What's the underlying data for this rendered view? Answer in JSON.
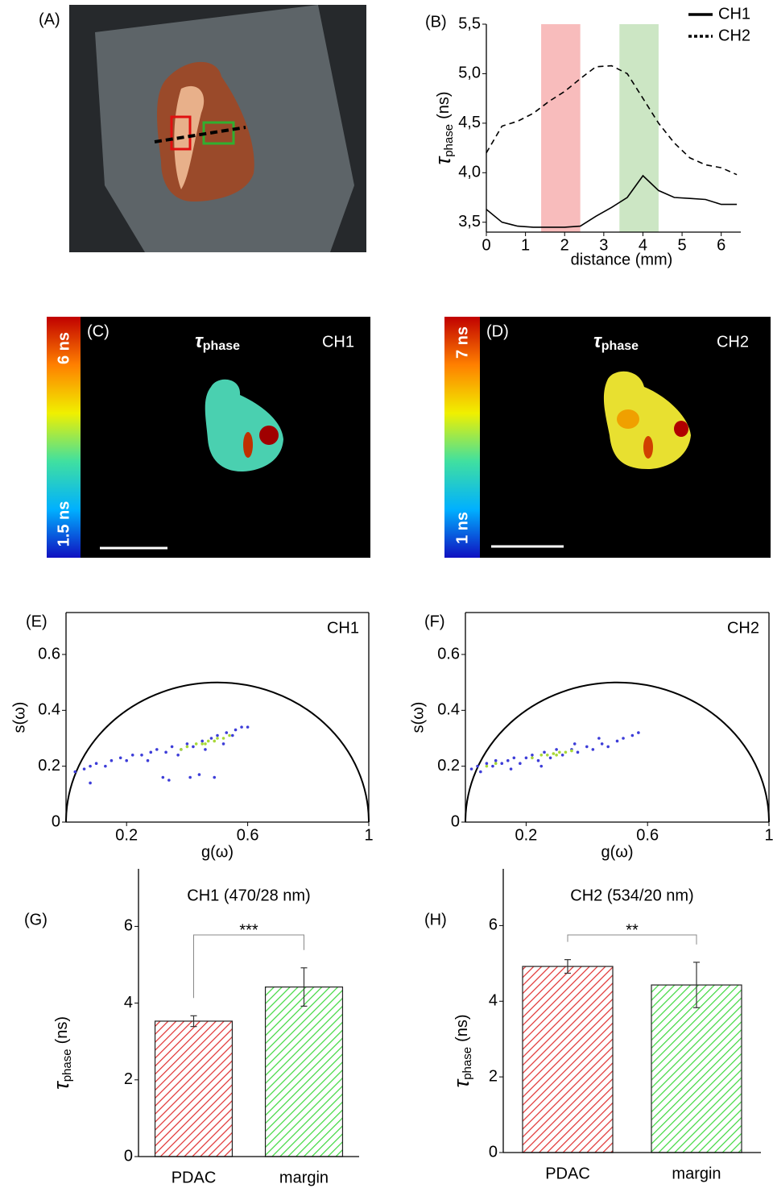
{
  "chart_data": [
    {
      "type": "line",
      "panel": "(B)",
      "ylabel": [
        "τ",
        "phase",
        "(ns)"
      ],
      "xlabel": "distance (mm)",
      "x": [
        0,
        0.4,
        0.8,
        1.2,
        1.6,
        2.0,
        2.4,
        2.8,
        3.2,
        3.6,
        4.0,
        4.4,
        4.8,
        5.2,
        5.6,
        6.0,
        6.4
      ],
      "series": [
        {
          "name": "CH1",
          "color": "#000000",
          "dash": "solid",
          "values": [
            3.63,
            3.5,
            3.46,
            3.45,
            3.45,
            3.45,
            3.46,
            3.56,
            3.65,
            3.75,
            3.97,
            3.82,
            3.75,
            3.74,
            3.73,
            3.68,
            3.68
          ]
        },
        {
          "name": "CH2",
          "color": "#000000",
          "dash": "dashed",
          "values": [
            4.2,
            4.47,
            4.52,
            4.6,
            4.72,
            4.82,
            4.95,
            5.07,
            5.08,
            5.0,
            4.75,
            4.5,
            4.3,
            4.15,
            4.08,
            4.05,
            3.98
          ]
        }
      ],
      "bands": [
        {
          "from": 1.4,
          "to": 2.4,
          "color": "#f8bcbc"
        },
        {
          "from": 3.4,
          "to": 4.4,
          "color": "#cce6c4"
        }
      ],
      "xlim": [
        0,
        6.5
      ],
      "ylim": [
        3.4,
        5.5
      ],
      "xticks": [
        0,
        1,
        2,
        3,
        4,
        5,
        6
      ],
      "yticks": [
        {
          "value": 3.5,
          "label": "3,5"
        },
        {
          "value": 4.0,
          "label": "4,0"
        },
        {
          "value": 4.5,
          "label": "4,5"
        },
        {
          "value": 5.0,
          "label": "5,0"
        },
        {
          "value": 5.5,
          "label": "5,5"
        }
      ],
      "legend": "top-right"
    },
    {
      "type": "scatter",
      "panel": "(E)",
      "label": "CH1",
      "xlabel": "g(ω)",
      "ylabel": "s(ω)",
      "xlim": [
        0,
        1
      ],
      "ylim": [
        0,
        0.75
      ],
      "xticks": [
        0.2,
        0.6,
        1
      ],
      "yticks": [
        0,
        0.2,
        0.4,
        0.6
      ],
      "semicircle": true,
      "series": [
        {
          "color": "#3d3dd8",
          "x": [
            0.03,
            0.06,
            0.08,
            0.1,
            0.08,
            0.13,
            0.15,
            0.18,
            0.2,
            0.22,
            0.25,
            0.28,
            0.3,
            0.33,
            0.35,
            0.38,
            0.4,
            0.42,
            0.45,
            0.48,
            0.5,
            0.53,
            0.56,
            0.58,
            0.6,
            0.32,
            0.34,
            0.41,
            0.44,
            0.49,
            0.27,
            0.37,
            0.46,
            0.52,
            0.55
          ],
          "y": [
            0.18,
            0.19,
            0.2,
            0.21,
            0.14,
            0.2,
            0.22,
            0.23,
            0.22,
            0.24,
            0.24,
            0.25,
            0.26,
            0.25,
            0.27,
            0.26,
            0.28,
            0.27,
            0.29,
            0.3,
            0.31,
            0.32,
            0.33,
            0.34,
            0.34,
            0.16,
            0.15,
            0.16,
            0.17,
            0.16,
            0.22,
            0.24,
            0.26,
            0.28,
            0.31
          ]
        },
        {
          "color": "#a8d838",
          "x": [
            0.4,
            0.43,
            0.45,
            0.47,
            0.49,
            0.5,
            0.52,
            0.54,
            0.38,
            0.46
          ],
          "y": [
            0.27,
            0.28,
            0.28,
            0.29,
            0.29,
            0.3,
            0.3,
            0.31,
            0.26,
            0.28
          ]
        }
      ]
    },
    {
      "type": "scatter",
      "panel": "(F)",
      "label": "CH2",
      "xlabel": "g(ω)",
      "ylabel": "s(ω)",
      "xlim": [
        0,
        1
      ],
      "ylim": [
        0,
        0.75
      ],
      "xticks": [
        0.2,
        0.6,
        1
      ],
      "yticks": [
        0,
        0.2,
        0.4,
        0.6
      ],
      "semicircle": true,
      "series": [
        {
          "color": "#3d3dd8",
          "x": [
            0.02,
            0.04,
            0.05,
            0.07,
            0.09,
            0.1,
            0.12,
            0.14,
            0.16,
            0.18,
            0.2,
            0.22,
            0.24,
            0.26,
            0.28,
            0.3,
            0.32,
            0.35,
            0.37,
            0.4,
            0.42,
            0.45,
            0.47,
            0.5,
            0.52,
            0.55,
            0.57,
            0.44,
            0.36,
            0.25,
            0.15
          ],
          "y": [
            0.19,
            0.2,
            0.18,
            0.21,
            0.2,
            0.22,
            0.21,
            0.22,
            0.23,
            0.21,
            0.23,
            0.24,
            0.22,
            0.25,
            0.23,
            0.26,
            0.24,
            0.26,
            0.25,
            0.27,
            0.26,
            0.28,
            0.27,
            0.29,
            0.3,
            0.31,
            0.32,
            0.3,
            0.28,
            0.2,
            0.19
          ]
        },
        {
          "color": "#a8d838",
          "x": [
            0.22,
            0.25,
            0.27,
            0.29,
            0.31,
            0.33,
            0.35,
            0.3,
            0.07,
            0.1
          ],
          "y": [
            0.23,
            0.24,
            0.24,
            0.245,
            0.25,
            0.25,
            0.255,
            0.24,
            0.2,
            0.21
          ]
        }
      ]
    },
    {
      "type": "bar",
      "panel": "(G)",
      "title": "CH1 (470/28 nm)",
      "ylabel": [
        "τ",
        "phase",
        "(ns)"
      ],
      "categories": [
        "PDAC",
        "margin"
      ],
      "values": [
        3.53,
        4.42
      ],
      "errors": [
        0.14,
        0.5
      ],
      "colors": [
        "#e03030",
        "#3ed83e"
      ],
      "hatch": true,
      "ylim": [
        0,
        7.5
      ],
      "yticks": [
        0,
        2,
        4,
        6
      ],
      "significance": "***"
    },
    {
      "type": "bar",
      "panel": "(H)",
      "title": "CH2 (534/20 nm)",
      "ylabel": [
        "τ",
        "phase",
        "(ns)"
      ],
      "categories": [
        "PDAC",
        "margin"
      ],
      "values": [
        4.92,
        4.43
      ],
      "errors": [
        0.18,
        0.6
      ],
      "colors": [
        "#e03030",
        "#3ed83e"
      ],
      "hatch": true,
      "ylim": [
        0,
        7.5
      ],
      "yticks": [
        0,
        2,
        4,
        6
      ],
      "significance": "**"
    }
  ],
  "images": [
    {
      "panel": "(A)"
    },
    {
      "panel": "(C)",
      "title": [
        "τ",
        "phase"
      ],
      "label": "CH1",
      "colorbar": [
        "6 ns",
        "1.5 ns"
      ]
    },
    {
      "panel": "(D)",
      "title": [
        "τ",
        "phase"
      ],
      "label": "CH2",
      "colorbar": [
        "7 ns",
        "1 ns"
      ]
    }
  ]
}
